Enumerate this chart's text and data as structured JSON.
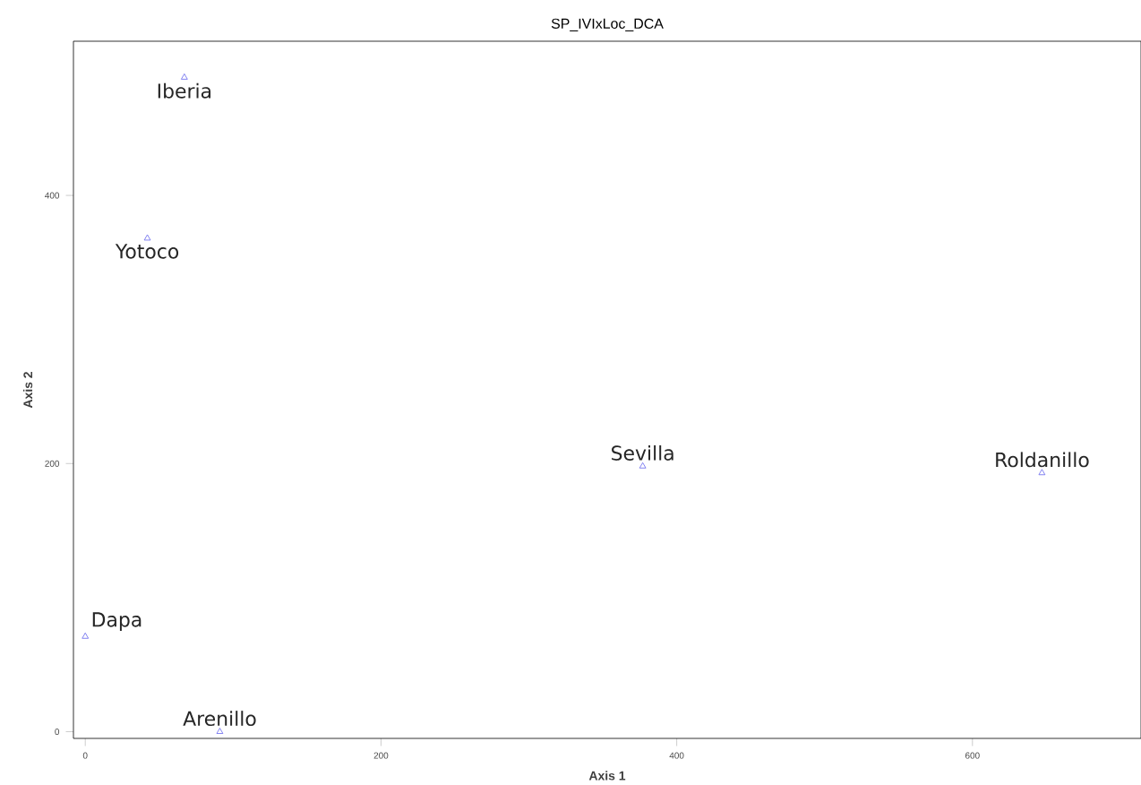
{
  "chart_data": {
    "type": "scatter",
    "title": "SP_IVIxLoc_DCA",
    "xlabel": "Axis 1",
    "ylabel": "Axis 2",
    "x": [
      67,
      42,
      0,
      91,
      377,
      647
    ],
    "series": [
      {
        "color": "#6666ee",
        "values": [
          488,
          368,
          71,
          0,
          198,
          193
        ]
      }
    ],
    "marker": "triangle",
    "xlim": [
      -8,
      714
    ],
    "ylim": [
      -5,
      515
    ],
    "xticks": [
      0,
      200,
      400,
      600
    ],
    "yticks": [
      0,
      200,
      400
    ],
    "annotations": [
      {
        "text": "Iberia",
        "x": 67,
        "y": 488
      },
      {
        "text": "Yotoco",
        "x": 42,
        "y": 368
      },
      {
        "text": "Dapa",
        "x": 0,
        "y": 71
      },
      {
        "text": "Arenillo",
        "x": 91,
        "y": 0
      },
      {
        "text": "Sevilla",
        "x": 377,
        "y": 198
      },
      {
        "text": "Roldanillo",
        "x": 647,
        "y": 193
      }
    ]
  }
}
